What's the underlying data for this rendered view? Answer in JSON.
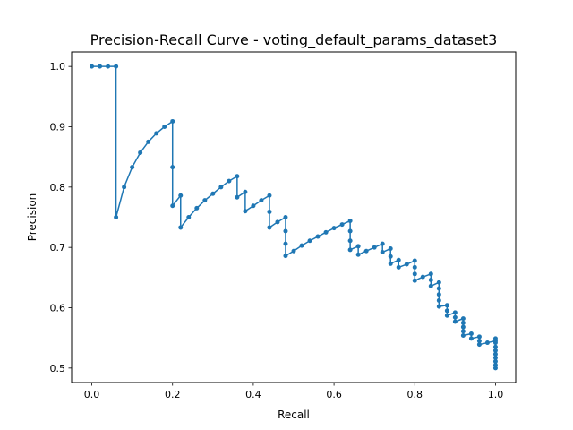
{
  "chart_data": {
    "type": "line",
    "title": "Precision-Recall Curve - voting_default_params_dataset3",
    "xlabel": "Recall",
    "ylabel": "Precision",
    "xlim": [
      -0.05,
      1.05
    ],
    "ylim": [
      0.476,
      1.024
    ],
    "xticks": [
      "0.0",
      "0.2",
      "0.4",
      "0.6",
      "0.8",
      "1.0"
    ],
    "yticks": [
      "0.5",
      "0.6",
      "0.7",
      "0.8",
      "0.9",
      "1.0"
    ],
    "grid": false,
    "color": "#1f77b4",
    "series": [
      {
        "points": [
          [
            0.0,
            1.0
          ],
          [
            0.02,
            1.0
          ],
          [
            0.04,
            1.0
          ],
          [
            0.06,
            1.0
          ],
          [
            0.06,
            0.75
          ],
          [
            0.08,
            0.8
          ],
          [
            0.1,
            0.833
          ],
          [
            0.12,
            0.857
          ],
          [
            0.14,
            0.875
          ],
          [
            0.16,
            0.889
          ],
          [
            0.18,
            0.9
          ],
          [
            0.2,
            0.909
          ],
          [
            0.2,
            0.833
          ],
          [
            0.2,
            0.769
          ],
          [
            0.22,
            0.786
          ],
          [
            0.22,
            0.733
          ],
          [
            0.24,
            0.75
          ],
          [
            0.26,
            0.765
          ],
          [
            0.28,
            0.778
          ],
          [
            0.3,
            0.789
          ],
          [
            0.32,
            0.8
          ],
          [
            0.34,
            0.81
          ],
          [
            0.36,
            0.818
          ],
          [
            0.36,
            0.783
          ],
          [
            0.38,
            0.792
          ],
          [
            0.38,
            0.76
          ],
          [
            0.4,
            0.769
          ],
          [
            0.42,
            0.778
          ],
          [
            0.44,
            0.786
          ],
          [
            0.44,
            0.759
          ],
          [
            0.44,
            0.733
          ],
          [
            0.46,
            0.742
          ],
          [
            0.48,
            0.75
          ],
          [
            0.48,
            0.727
          ],
          [
            0.48,
            0.706
          ],
          [
            0.48,
            0.686
          ],
          [
            0.5,
            0.694
          ],
          [
            0.52,
            0.703
          ],
          [
            0.54,
            0.711
          ],
          [
            0.56,
            0.718
          ],
          [
            0.58,
            0.725
          ],
          [
            0.6,
            0.732
          ],
          [
            0.62,
            0.738
          ],
          [
            0.64,
            0.744
          ],
          [
            0.64,
            0.727
          ],
          [
            0.64,
            0.711
          ],
          [
            0.64,
            0.696
          ],
          [
            0.66,
            0.702
          ],
          [
            0.66,
            0.688
          ],
          [
            0.68,
            0.694
          ],
          [
            0.7,
            0.7
          ],
          [
            0.72,
            0.706
          ],
          [
            0.72,
            0.692
          ],
          [
            0.74,
            0.698
          ],
          [
            0.74,
            0.685
          ],
          [
            0.74,
            0.673
          ],
          [
            0.76,
            0.679
          ],
          [
            0.76,
            0.667
          ],
          [
            0.78,
            0.672
          ],
          [
            0.8,
            0.678
          ],
          [
            0.8,
            0.667
          ],
          [
            0.8,
            0.656
          ],
          [
            0.8,
            0.645
          ],
          [
            0.82,
            0.651
          ],
          [
            0.84,
            0.656
          ],
          [
            0.84,
            0.646
          ],
          [
            0.84,
            0.636
          ],
          [
            0.86,
            0.642
          ],
          [
            0.86,
            0.632
          ],
          [
            0.86,
            0.622
          ],
          [
            0.86,
            0.612
          ],
          [
            0.86,
            0.602
          ],
          [
            0.88,
            0.604
          ],
          [
            0.88,
            0.595
          ],
          [
            0.88,
            0.587
          ],
          [
            0.9,
            0.592
          ],
          [
            0.9,
            0.584
          ],
          [
            0.9,
            0.577
          ],
          [
            0.92,
            0.582
          ],
          [
            0.92,
            0.575
          ],
          [
            0.92,
            0.568
          ],
          [
            0.92,
            0.561
          ],
          [
            0.92,
            0.554
          ],
          [
            0.94,
            0.557
          ],
          [
            0.94,
            0.549
          ],
          [
            0.96,
            0.552
          ],
          [
            0.96,
            0.545
          ],
          [
            0.96,
            0.539
          ],
          [
            0.98,
            0.542
          ],
          [
            1.0,
            0.545
          ],
          [
            1.0,
            0.549
          ],
          [
            1.0,
            0.542
          ],
          [
            1.0,
            0.535
          ],
          [
            1.0,
            0.529
          ],
          [
            1.0,
            0.523
          ],
          [
            1.0,
            0.517
          ],
          [
            1.0,
            0.511
          ],
          [
            1.0,
            0.505
          ],
          [
            1.0,
            0.5
          ]
        ]
      }
    ]
  }
}
